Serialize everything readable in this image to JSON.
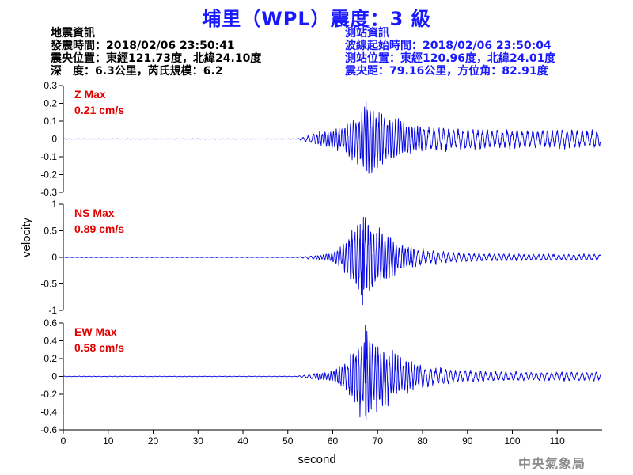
{
  "title": "埔里（WPL）震度：3 級",
  "earthquake_info": {
    "heading": "地震資訊",
    "origin_time": "發震時間：2018/02/06 23:50:41",
    "epicenter": "震央位置：東經121.73度，北緯24.10度",
    "depth_magnitude": "深　度：6.3公里，芮氏規模：6.2"
  },
  "station_info": {
    "heading": "測站資訊",
    "wave_start": "波線起始時間：2018/02/06 23:50:04",
    "station_location": "測站位置：東經120.96度，北緯24.01度",
    "distance_azimuth": "震央距：79.16公里，方位角：82.91度"
  },
  "watermark": "中央氣象局",
  "colors": {
    "title": "#1919ff",
    "station_info": "#1919ff",
    "trace": "#0000e0",
    "max_label": "#e00000",
    "axis": "#000000"
  },
  "chart_data": [
    {
      "type": "line",
      "component": "Z",
      "max_label": "Z Max",
      "max_value_label": "0.21 cm/s",
      "peak": 0.21,
      "ylim": [
        -0.3,
        0.3
      ],
      "yticks": [
        0.3,
        0.2,
        0.1,
        0,
        -0.1,
        -0.2,
        -0.3
      ],
      "ytick_labels": [
        "0.3",
        "0.2",
        "0.1",
        "0",
        "-0.1",
        "-0.2",
        "-0.3"
      ],
      "onset": 52,
      "peak_time": 68,
      "coda_amplitude": 0.05
    },
    {
      "type": "line",
      "component": "NS",
      "max_label": "NS Max",
      "max_value_label": "0.89 cm/s",
      "peak": 0.89,
      "ylim": [
        -1,
        1
      ],
      "yticks": [
        1,
        0.5,
        0,
        -0.5,
        -1
      ],
      "ytick_labels": [
        "1",
        "0.5",
        "0",
        "-0.5",
        "-1"
      ],
      "onset": 52,
      "peak_time": 66.5,
      "coda_amplitude": 0.06
    },
    {
      "type": "line",
      "component": "EW",
      "max_label": "EW Max",
      "max_value_label": "0.58 cm/s",
      "peak": 0.58,
      "ylim": [
        -0.6,
        0.6
      ],
      "yticks": [
        0.6,
        0.4,
        0.2,
        0,
        -0.2,
        -0.4,
        -0.6
      ],
      "ytick_labels": [
        "0.6",
        "0.4",
        "0.2",
        "0",
        "-0.2",
        "-0.4",
        "-0.6"
      ],
      "onset": 52,
      "peak_time": 67.5,
      "coda_amplitude": 0.05
    }
  ],
  "x_axis": {
    "label": "second",
    "xlim": [
      0,
      120
    ],
    "ticks": [
      0,
      10,
      20,
      30,
      40,
      50,
      60,
      70,
      80,
      90,
      100,
      110
    ],
    "tick_labels": [
      "0",
      "10",
      "20",
      "30",
      "40",
      "50",
      "60",
      "70",
      "80",
      "90",
      "100",
      "110"
    ]
  },
  "y_axis_label": "velocity"
}
